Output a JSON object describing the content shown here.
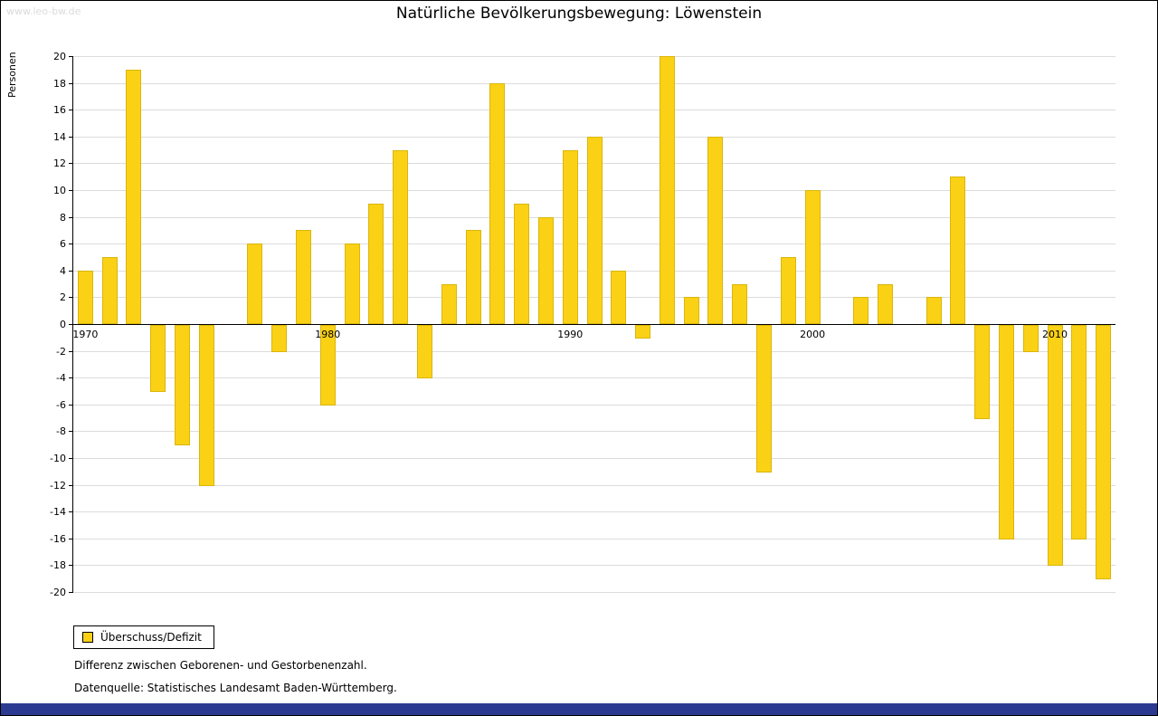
{
  "watermark": "www.leo-bw.de",
  "title": "Natürliche Bevölkerungsbewegung: Löwenstein",
  "ylabel": "Personen",
  "legend": {
    "label": "Überschuss/Defizit"
  },
  "notes": [
    "Differenz zwischen Geborenen- und Gestorbenenzahl.",
    "Datenquelle: Statistisches Landesamt Baden-Württemberg."
  ],
  "colors": {
    "bar_fill": "#FBD116",
    "bar_border": "#d9b60b",
    "grid_line": "#dcdcdc",
    "axis_line": "#000000",
    "footer_bar": "#2b3a90",
    "watermark_text": "#dbdbdb"
  },
  "chart_data": {
    "type": "bar",
    "title": "Natürliche Bevölkerungsbewegung: Löwenstein",
    "xlabel": "",
    "ylabel": "Personen",
    "legend_entries": [
      "Überschuss/Defizit"
    ],
    "legend_position": "bottom-left",
    "grid": true,
    "ylim": [
      -20,
      20
    ],
    "ytick_step": 2,
    "xticks": [
      1970,
      1980,
      1990,
      2000,
      2010
    ],
    "x_start": 1970,
    "years": [
      1970,
      1971,
      1972,
      1973,
      1974,
      1975,
      1976,
      1977,
      1978,
      1979,
      1980,
      1981,
      1982,
      1983,
      1984,
      1985,
      1986,
      1987,
      1988,
      1989,
      1990,
      1991,
      1992,
      1993,
      1994,
      1995,
      1996,
      1997,
      1998,
      1999,
      2000,
      2001,
      2002,
      2003,
      2004,
      2005,
      2006,
      2007,
      2008,
      2009,
      2010,
      2011,
      2012
    ],
    "values": [
      4,
      5,
      19,
      -5,
      -9,
      -12,
      0,
      6,
      -2,
      7,
      -6,
      6,
      9,
      13,
      -4,
      3,
      7,
      18,
      9,
      8,
      13,
      14,
      4,
      -1,
      20,
      2,
      14,
      3,
      -11,
      5,
      10,
      0,
      2,
      3,
      0,
      2,
      11,
      -7,
      -16,
      -2,
      -18,
      -16,
      -19
    ]
  }
}
